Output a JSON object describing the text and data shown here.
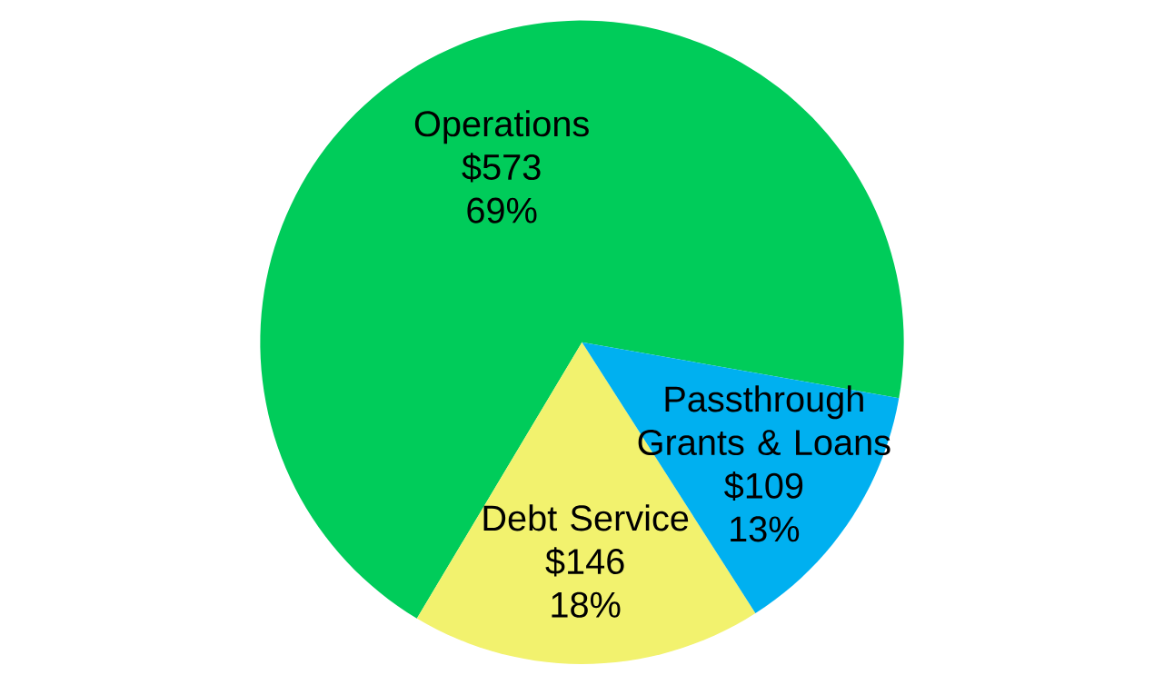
{
  "chart_data": {
    "type": "pie",
    "categories": [
      "Operations",
      "Debt Service",
      "Passthrough Grants & Loans"
    ],
    "values": [
      573,
      146,
      109
    ],
    "colors": [
      "#00cc5a",
      "#f2f26e",
      "#00b0f0"
    ],
    "value_labels": [
      "$573",
      "$146",
      "$109"
    ],
    "annotations": [
      "69%",
      "18%",
      "13%"
    ]
  }
}
